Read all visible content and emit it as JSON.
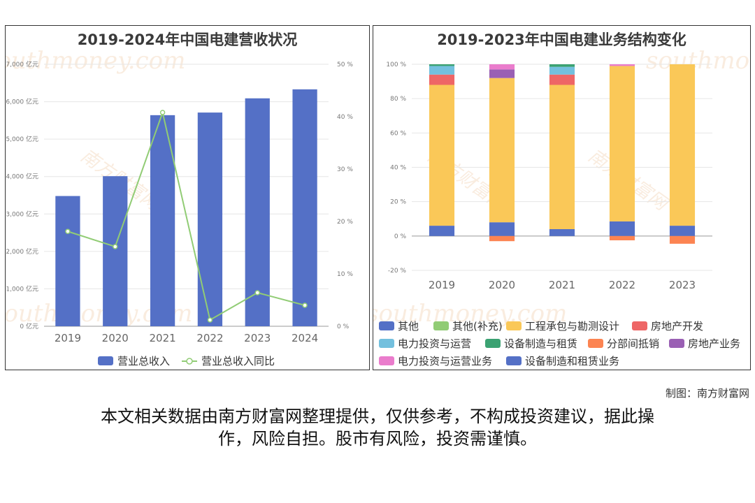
{
  "footer": {
    "credit": "制图：南方财富网",
    "disclaimer_line1": "本文相关数据由南方财富网整理提供，仅供参考，不构成投资建议，据此操",
    "disclaimer_line2": "作，风险自担。股市有风险，投资需谨慎。"
  },
  "watermark": {
    "text_cn": "南方财富网",
    "text_en": "southmoney.com"
  },
  "chart_data": [
    {
      "type": "bar",
      "title": "2019-2024年中国电建营收状况",
      "categories": [
        "2019",
        "2020",
        "2021",
        "2022",
        "2023",
        "2024"
      ],
      "series": [
        {
          "name": "营业总收入",
          "type": "bar",
          "axis": "left",
          "color": "#5470c6",
          "values": [
            3480,
            4010,
            5640,
            5710,
            6090,
            6330
          ]
        },
        {
          "name": "营业总收入同比",
          "type": "line",
          "axis": "right",
          "color": "#91cc75",
          "values": [
            18.1,
            15.2,
            40.8,
            1.2,
            6.4,
            4.0
          ]
        }
      ],
      "y_left": {
        "min": 0,
        "max": 7000,
        "step": 1000,
        "unit_suffix": " 亿元",
        "tick_labels": [
          "0 亿元",
          "1,000 亿元",
          "2,000 亿元",
          "3,000 亿元",
          "4,000 亿元",
          "5,000 亿元",
          "6,000 亿元",
          "7,000 亿元"
        ]
      },
      "y_right": {
        "min": 0,
        "max": 50,
        "step": 10,
        "tick_labels": [
          "0 %",
          "10 %",
          "20 %",
          "30 %",
          "40 %",
          "50 %"
        ]
      },
      "legend": {
        "position": "bottom",
        "items": [
          "营业总收入",
          "营业总收入同比"
        ]
      },
      "grid": true
    },
    {
      "type": "bar",
      "stacked": true,
      "title": "2019-2023年中国电建业务结构变化",
      "categories": [
        "2019",
        "2020",
        "2021",
        "2022",
        "2023"
      ],
      "y": {
        "min": -20,
        "max": 100,
        "step": 20,
        "tick_labels": [
          "-20 %",
          "0 %",
          "20 %",
          "40 %",
          "60 %",
          "80 %",
          "100 %"
        ]
      },
      "series": [
        {
          "name": "其他",
          "color": "#5470c6",
          "values": [
            6,
            8,
            4,
            8.5,
            6
          ]
        },
        {
          "name": "其他(补充)",
          "color": "#91cc75",
          "values": [
            0,
            0,
            0,
            0,
            0
          ]
        },
        {
          "name": "工程承包与勘测设计",
          "color": "#fac858",
          "values": [
            82,
            84,
            84,
            90.5,
            94
          ]
        },
        {
          "name": "房地产开发",
          "color": "#ee6666",
          "values": [
            6,
            0,
            6,
            0,
            0
          ]
        },
        {
          "name": "电力投资与运营",
          "color": "#73c0de",
          "values": [
            5,
            0,
            4.5,
            0,
            0
          ]
        },
        {
          "name": "设备制造与租赁",
          "color": "#3ba272",
          "values": [
            1,
            0,
            1.5,
            0,
            0
          ]
        },
        {
          "name": "分部间抵销",
          "color": "#fc8452",
          "values": [
            0,
            -3,
            0,
            -2.5,
            -4.5
          ]
        },
        {
          "name": "房地产业务",
          "color": "#9a60b4",
          "values": [
            0,
            5,
            0,
            0,
            0
          ]
        },
        {
          "name": "电力投资与运营业务",
          "color": "#ea7ccc",
          "values": [
            0,
            3,
            0,
            1,
            0
          ]
        },
        {
          "name": "设备制造和租赁业务",
          "color": "#5470c6",
          "values": [
            0,
            0,
            0,
            0,
            0
          ]
        }
      ],
      "legend": {
        "position": "bottom",
        "items": [
          "其他",
          "其他(补充)",
          "工程承包与勘测设计",
          "房地产开发",
          "电力投资与运营",
          "设备制造与租赁",
          "分部间抵销",
          "房地产业务",
          "电力投资与运营业务",
          "设备制造和租赁业务"
        ]
      },
      "grid": true
    }
  ]
}
